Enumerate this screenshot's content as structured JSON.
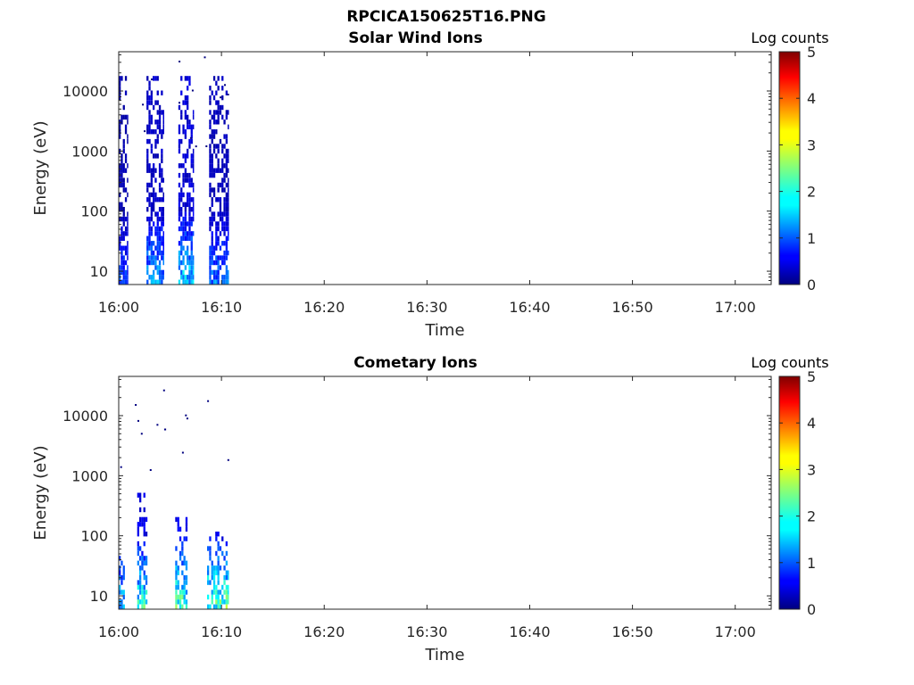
{
  "figure_title": "RPCICA150625T16.PNG",
  "chart_data": [
    {
      "type": "heatmap",
      "title": "Solar Wind Ions",
      "xlabel": "Time",
      "ylabel": "Energy (eV)",
      "y_scale": "log",
      "ylim": [
        6,
        45000
      ],
      "x_tick_labels": [
        "16:00",
        "16:10",
        "16:20",
        "16:30",
        "16:40",
        "16:50",
        "17:00"
      ],
      "x_tick_minutes": [
        0,
        10,
        20,
        30,
        40,
        50,
        60
      ],
      "xlim_minutes": [
        0,
        63.5
      ],
      "y_tick_labels": [
        "10",
        "100",
        "1000",
        "10000"
      ],
      "y_tick_values": [
        10,
        100,
        1000,
        10000
      ],
      "colorbar": {
        "label": "Log counts",
        "range": [
          0,
          5
        ],
        "tick_labels": [
          "0",
          "1",
          "2",
          "3",
          "4",
          "5"
        ],
        "colormap": "jet"
      },
      "data_time_range_minutes": [
        0,
        10.8
      ],
      "bursts": [
        {
          "t_start": 0.0,
          "t_end": 0.9,
          "e_min": 6,
          "e_max": 15000,
          "peak_log_counts": 1.2
        },
        {
          "t_start": 2.7,
          "t_end": 4.4,
          "e_min": 6,
          "e_max": 15000,
          "peak_log_counts": 1.8
        },
        {
          "t_start": 5.8,
          "t_end": 7.3,
          "e_min": 6,
          "e_max": 15000,
          "peak_log_counts": 2.2
        },
        {
          "t_start": 8.8,
          "t_end": 10.7,
          "e_min": 6,
          "e_max": 15000,
          "peak_log_counts": 1.5
        }
      ]
    },
    {
      "type": "heatmap",
      "title": "Cometary Ions",
      "xlabel": "Time",
      "ylabel": "Energy (eV)",
      "y_scale": "log",
      "ylim": [
        6,
        45000
      ],
      "x_tick_labels": [
        "16:00",
        "16:10",
        "16:20",
        "16:30",
        "16:40",
        "16:50",
        "17:00"
      ],
      "x_tick_minutes": [
        0,
        10,
        20,
        30,
        40,
        50,
        60
      ],
      "xlim_minutes": [
        0,
        63.5
      ],
      "y_tick_labels": [
        "10",
        "100",
        "1000",
        "10000"
      ],
      "y_tick_values": [
        10,
        100,
        1000,
        10000
      ],
      "colorbar": {
        "label": "Log counts",
        "range": [
          0,
          5
        ],
        "tick_labels": [
          "0",
          "1",
          "2",
          "3",
          "4",
          "5"
        ],
        "colormap": "jet"
      },
      "data_time_range_minutes": [
        0,
        10.8
      ],
      "bursts": [
        {
          "t_start": 0.0,
          "t_end": 0.6,
          "e_min": 6,
          "e_max": 45,
          "peak_log_counts": 2.0
        },
        {
          "t_start": 1.8,
          "t_end": 2.8,
          "e_min": 6,
          "e_max": 500,
          "peak_log_counts": 2.6
        },
        {
          "t_start": 5.5,
          "t_end": 6.7,
          "e_min": 6,
          "e_max": 200,
          "peak_log_counts": 2.8
        },
        {
          "t_start": 8.6,
          "t_end": 10.7,
          "e_min": 6,
          "e_max": 100,
          "peak_log_counts": 2.9
        }
      ]
    }
  ]
}
